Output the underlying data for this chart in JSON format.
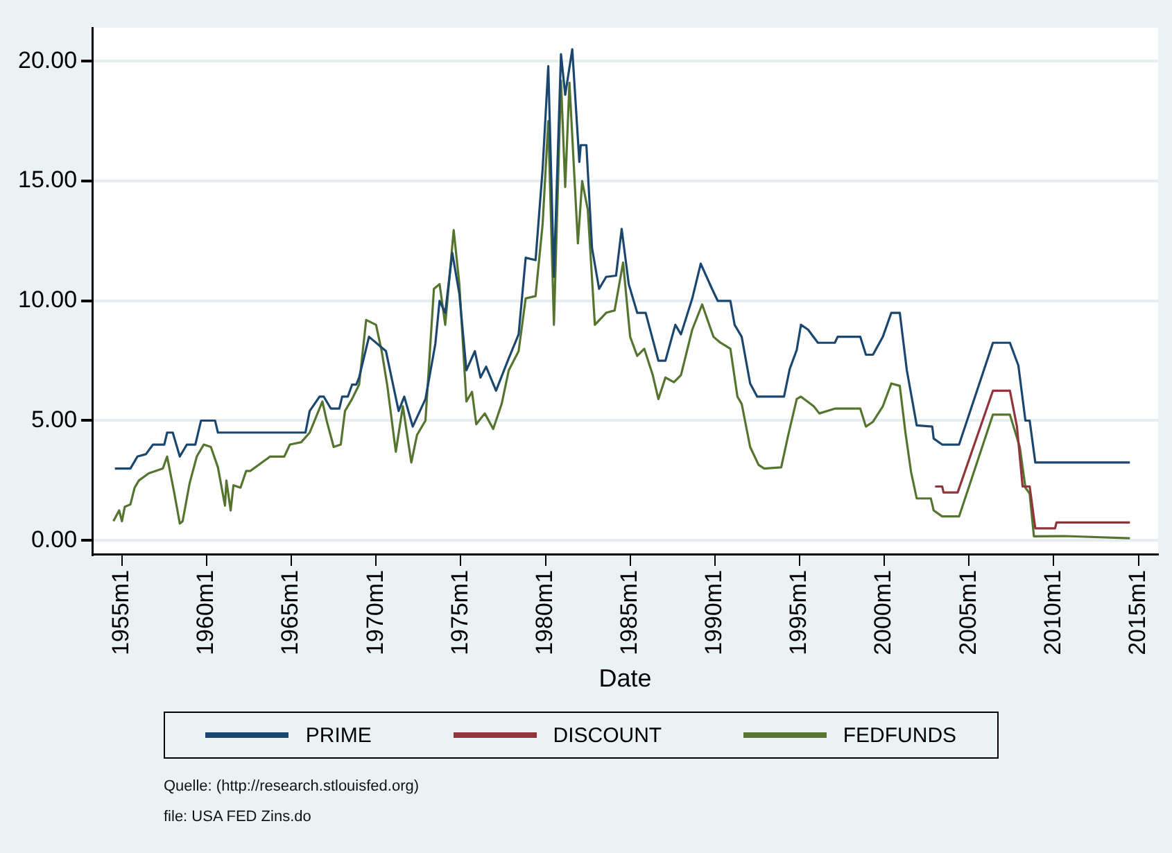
{
  "chart_data": {
    "type": "line",
    "xlabel": "Date",
    "xlim": [
      "1953-04",
      "2016-03"
    ],
    "ylim": [
      -0.6,
      21.4
    ],
    "xticks": [
      {
        "value": "1955-01",
        "label": "1955m1"
      },
      {
        "value": "1960-01",
        "label": "1960m1"
      },
      {
        "value": "1965-01",
        "label": "1965m1"
      },
      {
        "value": "1970-01",
        "label": "1970m1"
      },
      {
        "value": "1975-01",
        "label": "1975m1"
      },
      {
        "value": "1980-01",
        "label": "1980m1"
      },
      {
        "value": "1985-01",
        "label": "1985m1"
      },
      {
        "value": "1990-01",
        "label": "1990m1"
      },
      {
        "value": "1995-01",
        "label": "1995m1"
      },
      {
        "value": "2000-01",
        "label": "2000m1"
      },
      {
        "value": "2005-01",
        "label": "2005m1"
      },
      {
        "value": "2010-01",
        "label": "2010m1"
      },
      {
        "value": "2015-01",
        "label": "2015m1"
      }
    ],
    "yticks": [
      {
        "value": 0,
        "label": "0.00"
      },
      {
        "value": 5,
        "label": "5.00"
      },
      {
        "value": 10,
        "label": "10.00"
      },
      {
        "value": 15,
        "label": "15.00"
      },
      {
        "value": 20,
        "label": "20.00"
      }
    ],
    "grid": "y",
    "legend": "bottom",
    "marker": "none",
    "line_style": "solid",
    "annotations": [
      "Quelle: (http://research.stlouisfed.org)",
      "file: USA FED Zins.do"
    ],
    "series": [
      {
        "name": "PRIME",
        "color": "#1a476f",
        "x": [
          "1954-08",
          "1955-07",
          "1955-12",
          "1956-06",
          "1956-11",
          "1957-07",
          "1957-09",
          "1958-01",
          "1958-06",
          "1958-11",
          "1959-05",
          "1959-09",
          "1960-07",
          "1960-09",
          "1965-11",
          "1966-02",
          "1966-09",
          "1966-12",
          "1967-05",
          "1967-11",
          "1968-01",
          "1968-05",
          "1968-08",
          "1968-11",
          "1969-01",
          "1969-08",
          "1970-08",
          "1971-05",
          "1971-09",
          "1972-03",
          "1972-12",
          "1973-07",
          "1973-10",
          "1974-02",
          "1974-07",
          "1974-12",
          "1975-05",
          "1975-11",
          "1976-03",
          "1976-07",
          "1977-02",
          "1977-11",
          "1978-06",
          "1978-11",
          "1979-06",
          "1979-11",
          "1980-03",
          "1980-07",
          "1980-12",
          "1981-03",
          "1981-08",
          "1982-01",
          "1982-02",
          "1982-06",
          "1982-10",
          "1983-03",
          "1983-08",
          "1984-03",
          "1984-07",
          "1984-12",
          "1985-06",
          "1985-12",
          "1986-09",
          "1987-02",
          "1987-09",
          "1988-01",
          "1988-09",
          "1989-03",
          "1989-11",
          "1990-03",
          "1990-12",
          "1991-03",
          "1991-08",
          "1992-02",
          "1992-07",
          "1994-02",
          "1994-06",
          "1994-11",
          "1995-02",
          "1995-07",
          "1996-02",
          "1997-02",
          "1997-04",
          "1998-08",
          "1998-12",
          "1999-05",
          "1999-12",
          "2000-06",
          "2000-12",
          "2001-05",
          "2001-12",
          "2002-11",
          "2002-12",
          "2003-06",
          "2004-06",
          "2006-06",
          "2007-06",
          "2007-12",
          "2008-05",
          "2008-08",
          "2008-12",
          "2014-07"
        ],
        "values": [
          3.0,
          3.0,
          3.5,
          3.6,
          4.0,
          4.0,
          4.5,
          4.5,
          3.5,
          4.0,
          4.0,
          5.0,
          5.0,
          4.5,
          4.5,
          5.4,
          6.0,
          6.0,
          5.5,
          5.5,
          6.0,
          6.0,
          6.5,
          6.5,
          6.8,
          8.5,
          7.9,
          5.4,
          6.0,
          4.75,
          5.9,
          8.2,
          10.0,
          9.5,
          12.0,
          10.3,
          7.1,
          7.9,
          6.8,
          7.25,
          6.25,
          7.6,
          8.6,
          11.8,
          11.7,
          15.5,
          19.8,
          11.0,
          20.3,
          18.6,
          20.5,
          15.8,
          16.5,
          16.5,
          12.2,
          10.5,
          11.0,
          11.05,
          13.0,
          10.7,
          9.5,
          9.5,
          7.5,
          7.5,
          9.0,
          8.6,
          10.1,
          11.55,
          10.5,
          10.0,
          10.0,
          9.0,
          8.5,
          6.55,
          6.0,
          6.0,
          7.15,
          7.95,
          9.0,
          8.8,
          8.25,
          8.25,
          8.5,
          8.5,
          7.75,
          7.75,
          8.5,
          9.5,
          9.5,
          7.1,
          4.8,
          4.75,
          4.25,
          4.0,
          4.0,
          8.25,
          8.25,
          7.3,
          5.0,
          5.0,
          3.25,
          3.25
        ]
      },
      {
        "name": "DISCOUNT",
        "color": "#90353b",
        "x": [
          "2003-01",
          "2003-06",
          "2003-07",
          "2004-05",
          "2006-06",
          "2007-06",
          "2007-11",
          "2008-03",
          "2008-08",
          "2008-12",
          "2010-02",
          "2010-03",
          "2014-07"
        ],
        "values": [
          2.25,
          2.25,
          2.0,
          2.0,
          6.25,
          6.25,
          4.75,
          2.25,
          2.25,
          0.5,
          0.5,
          0.75,
          0.75
        ]
      },
      {
        "name": "FEDFUNDS",
        "color": "#55752f",
        "x": [
          "1954-07",
          "1954-11",
          "1955-01",
          "1955-03",
          "1955-07",
          "1955-10",
          "1956-01",
          "1956-08",
          "1957-06",
          "1957-09",
          "1958-02",
          "1958-06",
          "1958-08",
          "1959-01",
          "1959-06",
          "1959-11",
          "1960-04",
          "1960-09",
          "1961-02",
          "1961-03",
          "1961-06",
          "1961-08",
          "1962-01",
          "1962-05",
          "1962-08",
          "1963-10",
          "1964-08",
          "1964-12",
          "1965-08",
          "1966-02",
          "1966-11",
          "1967-02",
          "1967-07",
          "1967-12",
          "1968-03",
          "1968-08",
          "1969-01",
          "1969-06",
          "1970-01",
          "1970-05",
          "1970-09",
          "1971-03",
          "1971-08",
          "1972-02",
          "1972-06",
          "1972-12",
          "1973-06",
          "1973-10",
          "1974-02",
          "1974-08",
          "1974-12",
          "1975-05",
          "1975-09",
          "1975-12",
          "1976-06",
          "1976-12",
          "1977-06",
          "1977-11",
          "1978-06",
          "1978-11",
          "1979-06",
          "1979-11",
          "1980-03",
          "1980-07",
          "1980-12",
          "1981-03",
          "1981-06",
          "1981-12",
          "1982-03",
          "1982-07",
          "1982-12",
          "1983-08",
          "1984-02",
          "1984-08",
          "1985-01",
          "1985-06",
          "1985-11",
          "1986-05",
          "1986-09",
          "1987-02",
          "1987-08",
          "1988-01",
          "1988-09",
          "1989-04",
          "1989-12",
          "1990-05",
          "1990-12",
          "1991-05",
          "1991-08",
          "1992-02",
          "1992-08",
          "1992-12",
          "1993-12",
          "1994-05",
          "1994-11",
          "1995-02",
          "1995-11",
          "1996-03",
          "1997-02",
          "1998-08",
          "1998-12",
          "1999-05",
          "1999-12",
          "2000-06",
          "2000-12",
          "2001-04",
          "2001-08",
          "2001-12",
          "2002-10",
          "2002-12",
          "2003-06",
          "2004-06",
          "2006-06",
          "2007-06",
          "2008-01",
          "2008-05",
          "2008-08",
          "2008-11",
          "2010-09",
          "2014-07"
        ],
        "values": [
          0.8,
          1.25,
          0.8,
          1.4,
          1.5,
          2.2,
          2.5,
          2.8,
          3.0,
          3.5,
          2.0,
          0.7,
          0.8,
          2.4,
          3.5,
          4.0,
          3.9,
          3.05,
          1.45,
          2.5,
          1.25,
          2.3,
          2.2,
          2.9,
          2.9,
          3.5,
          3.5,
          4.0,
          4.1,
          4.5,
          5.8,
          5.0,
          3.9,
          4.0,
          5.4,
          5.9,
          6.5,
          9.2,
          9.0,
          7.9,
          6.45,
          3.7,
          5.6,
          3.25,
          4.4,
          5.0,
          10.5,
          10.7,
          9.0,
          12.95,
          10.7,
          5.8,
          6.2,
          4.85,
          5.3,
          4.65,
          5.7,
          7.1,
          7.9,
          10.1,
          10.2,
          13.2,
          17.5,
          9.0,
          19.2,
          14.75,
          19.1,
          12.4,
          15.0,
          13.8,
          9.0,
          9.5,
          9.6,
          11.6,
          8.5,
          7.7,
          8.0,
          6.9,
          5.9,
          6.8,
          6.6,
          6.9,
          8.8,
          9.85,
          8.5,
          8.25,
          8.0,
          6.0,
          5.7,
          3.9,
          3.15,
          3.0,
          3.05,
          4.4,
          5.9,
          6.0,
          5.6,
          5.3,
          5.5,
          5.5,
          4.75,
          4.95,
          5.6,
          6.55,
          6.45,
          4.5,
          2.85,
          1.75,
          1.75,
          1.25,
          1.0,
          1.0,
          5.25,
          5.25,
          3.9,
          2.2,
          1.95,
          0.17,
          0.18,
          0.09
        ]
      }
    ]
  }
}
